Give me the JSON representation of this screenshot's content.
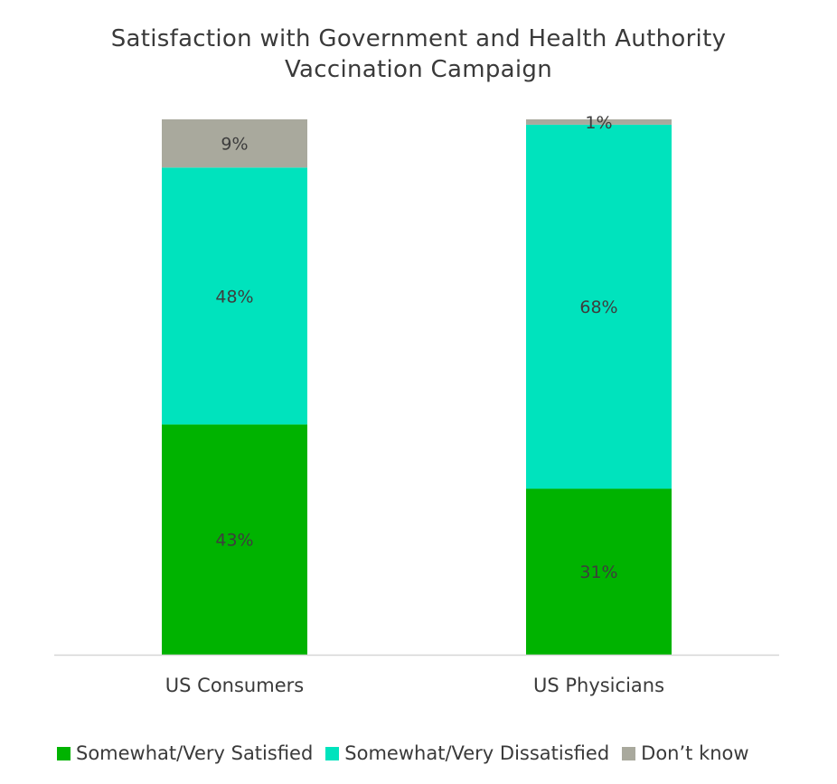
{
  "chart_data": {
    "type": "stacked_bar",
    "title_lines": [
      "Satisfaction with Government and Health Authority",
      "Vaccination Campaign"
    ],
    "categories": [
      "US Consumers",
      "US Physicians"
    ],
    "series": [
      {
        "name": "Somewhat/Very Satisfied",
        "values": [
          43,
          31
        ],
        "labels": [
          "43%",
          "31%"
        ],
        "color": "#00b300"
      },
      {
        "name": "Somewhat/Very Dissatisfied",
        "values": [
          48,
          68
        ],
        "labels": [
          "48%",
          "68%"
        ],
        "color": "#00e3bd"
      },
      {
        "name": "Don’t know",
        "values": [
          9,
          1
        ],
        "labels": [
          "9%",
          "1%"
        ],
        "color": "#a9a99d"
      }
    ],
    "ylim": [
      0,
      100
    ],
    "legend_position": "bottom",
    "grid": false
  }
}
